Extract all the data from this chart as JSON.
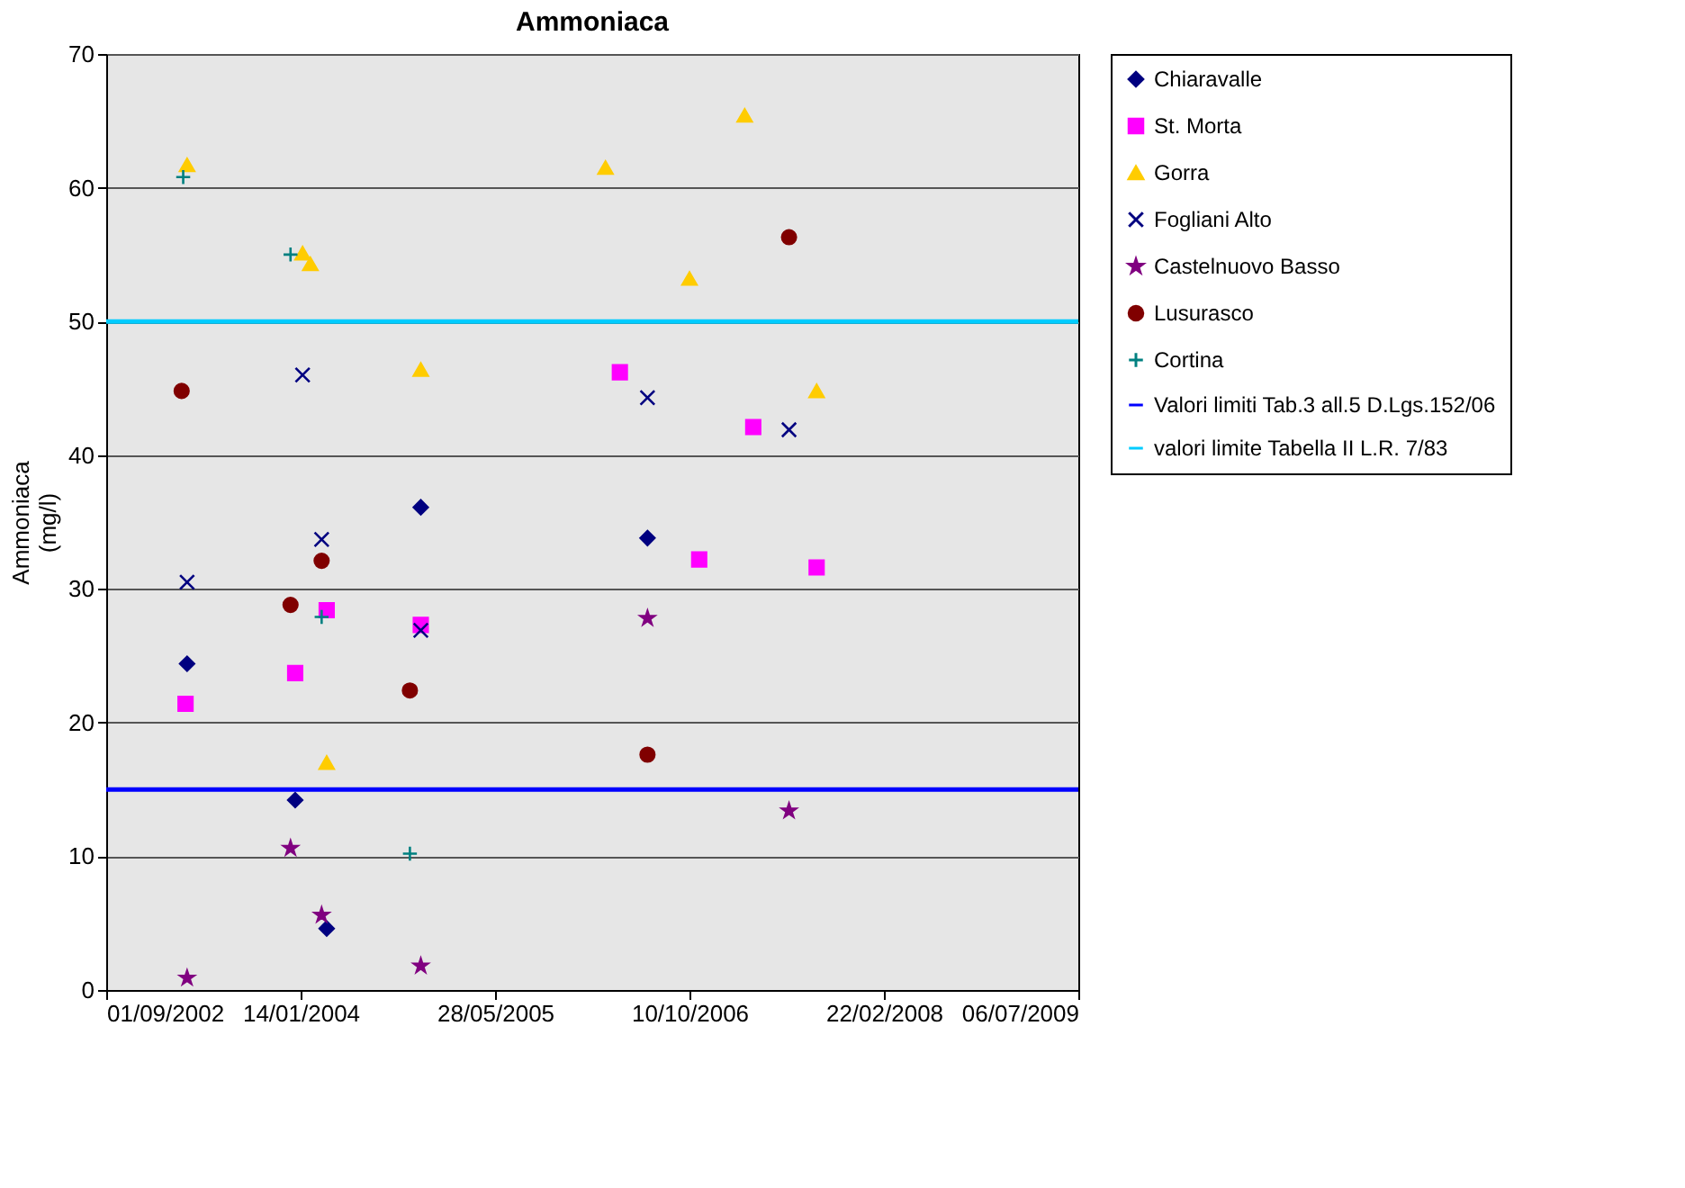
{
  "chart_data": {
    "type": "scatter",
    "title": "Ammoniaca",
    "ylabel": "Ammoniaca (mg/l)",
    "xlim": [
      "2002-09-01",
      "2009-07-06"
    ],
    "xticks": [
      {
        "value": "2002-09-01",
        "label": "01/09/2002"
      },
      {
        "value": "2004-01-14",
        "label": "14/01/2004"
      },
      {
        "value": "2005-05-28",
        "label": "28/05/2005"
      },
      {
        "value": "2006-10-10",
        "label": "10/10/2006"
      },
      {
        "value": "2008-02-22",
        "label": "22/02/2008"
      },
      {
        "value": "2009-07-06",
        "label": "06/07/2009"
      }
    ],
    "ylim": [
      0,
      70
    ],
    "yticks": [
      0,
      10,
      20,
      30,
      40,
      50,
      60,
      70
    ],
    "grid": "y",
    "legend": "top right",
    "series": [
      {
        "name": "Chiaravalle",
        "color": "#000080",
        "marker": "diamond",
        "x": [
          "2003-03-28",
          "2003-12-31",
          "2004-03-21",
          "2004-11-18",
          "2006-06-24"
        ],
        "values": [
          24.4,
          14.2,
          4.6,
          36.1,
          33.8
        ]
      },
      {
        "name": "St. Morta",
        "color": "#ff00ff",
        "marker": "square",
        "x": [
          "2003-03-24",
          "2003-12-31",
          "2004-03-21",
          "2004-11-18",
          "2006-04-14",
          "2006-11-04",
          "2007-03-23",
          "2007-09-02"
        ],
        "values": [
          21.4,
          23.7,
          28.4,
          27.3,
          46.2,
          32.2,
          42.1,
          31.6
        ]
      },
      {
        "name": "Gorra",
        "color": "#ffcc00",
        "marker": "triangle",
        "x": [
          "2003-03-28",
          "2004-01-19",
          "2004-02-08",
          "2004-03-21",
          "2004-11-18",
          "2006-03-08",
          "2006-10-10",
          "2007-03-01",
          "2007-09-02"
        ],
        "values": [
          61.7,
          55.1,
          54.3,
          17.0,
          46.4,
          61.5,
          53.2,
          65.4,
          44.8
        ]
      },
      {
        "name": "Fogliani Alto",
        "color": "#000080",
        "marker": "cross",
        "x": [
          "2003-03-28",
          "2004-01-19",
          "2004-03-08",
          "2004-11-18",
          "2006-06-24",
          "2007-06-23"
        ],
        "values": [
          30.5,
          46.0,
          33.7,
          26.9,
          44.3,
          41.9
        ]
      },
      {
        "name": "Castelnuovo Basso",
        "color": "#800080",
        "marker": "star",
        "x": [
          "2003-03-28",
          "2003-12-19",
          "2004-03-08",
          "2004-11-18",
          "2006-06-24",
          "2007-06-23"
        ],
        "values": [
          0.9,
          10.6,
          5.6,
          1.8,
          27.8,
          13.4
        ]
      },
      {
        "name": "Lusurasco",
        "color": "#800000",
        "marker": "circle",
        "x": [
          "2003-03-14",
          "2003-12-19",
          "2004-03-08",
          "2004-10-21",
          "2006-06-24",
          "2007-06-23"
        ],
        "values": [
          44.8,
          28.8,
          32.1,
          22.4,
          17.6,
          56.3
        ]
      },
      {
        "name": "Cortina",
        "color": "#008080",
        "marker": "plus",
        "x": [
          "2003-03-18",
          "2003-12-19",
          "2004-03-08",
          "2004-10-21"
        ],
        "values": [
          60.8,
          55.0,
          27.9,
          10.2
        ]
      }
    ],
    "ref_lines": [
      {
        "axis": "y",
        "value": 15,
        "label": "Valori limiti Tab.3 all.5 D.Lgs.152/06",
        "color": "#0000ff",
        "line_style": "solid"
      },
      {
        "axis": "y",
        "value": 50,
        "label": "valori limite Tabella II L.R. 7/83",
        "color": "#00ccff",
        "line_style": "solid"
      }
    ]
  }
}
